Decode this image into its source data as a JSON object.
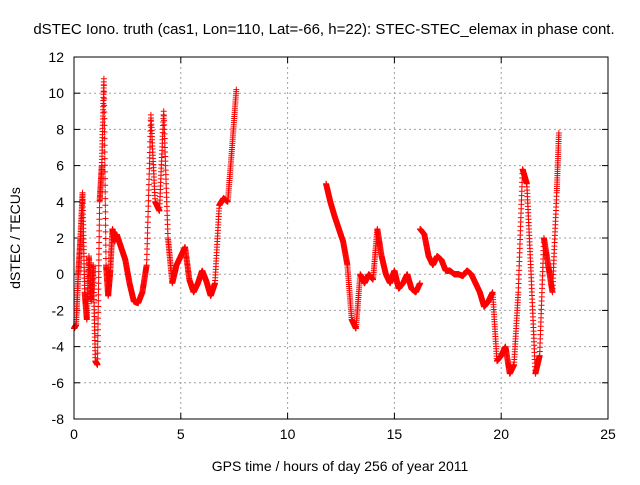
{
  "chart_data": {
    "type": "scatter",
    "title": "dSTEC Iono. truth (cas1, Lon=110, Lat=-66, h=22): STEC-STEC_elemax in phase cont.",
    "xlabel": "GPS time / hours of day 256 of year 2011",
    "ylabel": "dSTEC  / TECUs",
    "xlim": [
      0,
      25
    ],
    "ylim": [
      -8,
      12
    ],
    "xticks": [
      0,
      5,
      10,
      15,
      20,
      25
    ],
    "yticks": [
      -8,
      -6,
      -4,
      -2,
      0,
      2,
      4,
      6,
      8,
      10,
      12
    ],
    "grid": true,
    "marker": "+",
    "color": "#ff0000",
    "segments": [
      {
        "x": [
          0.0,
          0.1,
          0.2,
          0.3,
          0.4,
          0.5,
          0.6,
          0.7,
          0.8,
          0.9,
          1.0,
          1.1,
          1.2,
          1.3,
          1.4,
          1.5,
          1.6,
          1.7,
          1.8,
          1.9,
          2.0,
          2.2,
          2.4,
          2.6,
          2.8,
          3.0,
          3.2,
          3.4,
          3.6,
          3.8,
          4.0,
          4.2,
          4.4,
          4.6,
          4.8,
          5.0,
          5.2,
          5.4,
          5.6,
          5.8,
          6.0,
          6.2,
          6.4,
          6.6,
          6.8,
          7.0,
          7.2,
          7.4,
          7.6
        ],
        "y": [
          -3.0,
          -2.8,
          0.0,
          2.0,
          4.5,
          -1.0,
          -2.5,
          1.0,
          -1.5,
          0.5,
          -4.8,
          -5.0,
          4.0,
          6.0,
          10.8,
          0.5,
          -1.2,
          0.2,
          2.5,
          1.8,
          2.2,
          1.5,
          0.8,
          -0.5,
          -1.5,
          -1.6,
          -1.0,
          0.5,
          8.8,
          4.0,
          3.5,
          9.0,
          2.0,
          -0.5,
          0.5,
          1.0,
          1.5,
          -0.3,
          -1.0,
          -0.5,
          0.2,
          -0.4,
          -1.2,
          -0.5,
          3.8,
          4.2,
          4.0,
          7.0,
          10.2
        ]
      },
      {
        "x": [
          11.8,
          12.0,
          12.2,
          12.4,
          12.6,
          12.8,
          13.0,
          13.2,
          13.4,
          13.6,
          13.8,
          14.0,
          14.2,
          14.4,
          14.6,
          14.8,
          15.0,
          15.2,
          15.4,
          15.6,
          15.8,
          16.0,
          16.2
        ],
        "y": [
          5.0,
          4.0,
          3.2,
          2.5,
          1.8,
          0.5,
          -2.5,
          -3.0,
          0.0,
          -0.5,
          0.0,
          -0.3,
          2.5,
          1.0,
          0.0,
          -0.5,
          0.2,
          -0.8,
          -0.5,
          0.0,
          -0.8,
          -1.0,
          -0.5
        ]
      },
      {
        "x": [
          16.2,
          16.4,
          16.6,
          16.8,
          17.0,
          17.2,
          17.4,
          17.6,
          17.8,
          18.0,
          18.2,
          18.4,
          18.6,
          18.8,
          19.0,
          19.2,
          19.4,
          19.6,
          19.8,
          20.0,
          20.2,
          20.4,
          20.6,
          20.8,
          21.0,
          21.2,
          21.4,
          21.6,
          21.8,
          22.0,
          22.2,
          22.4,
          22.6,
          22.7
        ],
        "y": [
          2.5,
          2.2,
          1.0,
          0.5,
          1.0,
          0.8,
          0.2,
          0.2,
          0.0,
          0.0,
          -0.1,
          0.2,
          0.0,
          -0.5,
          -1.0,
          -1.8,
          -1.5,
          -1.0,
          -4.8,
          -4.5,
          -4.0,
          -5.5,
          -5.0,
          -1.0,
          5.8,
          5.0,
          0.0,
          -5.5,
          -4.5,
          2.0,
          0.5,
          -1.0,
          4.5,
          7.8
        ]
      }
    ]
  }
}
